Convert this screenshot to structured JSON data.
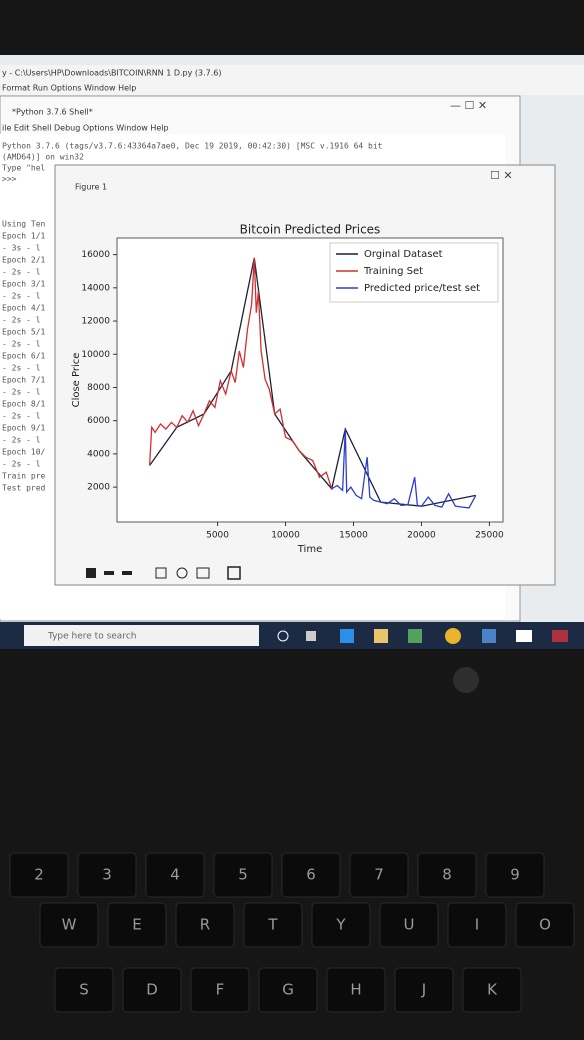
{
  "editor_title": "y - C:\\Users\\HP\\Downloads\\BITCOIN\\RNN 1 D.py (3.7.6)",
  "editor_menu": "Format   Run   Options   Window   Help",
  "shell_title": "*Python 3.7.6 Shell*",
  "shell_menu": "ile   Edit   Shell   Debug   Options   Window   Help",
  "shell_lines": [
    "Python 3.7.6 (tags/v3.7.6:43364a7ae0, Dec 19 2019, 00:42:30) [MSC v.1916 64 bit",
    "(AMD64)] on win32",
    "Type \"hel",
    ">>>"
  ],
  "shell_left_lines": [
    "Using Ten",
    "Epoch 1/1",
    " - 3s - l",
    "Epoch 2/1",
    " - 2s - l",
    "Epoch 3/1",
    " - 2s - l",
    "Epoch 4/1",
    " - 2s - l",
    "Epoch 5/1",
    " - 2s - l",
    "Epoch 6/1",
    " - 2s - l",
    "Epoch 7/1",
    " - 2s - l",
    "Epoch 8/1",
    " - 2s - l",
    "Epoch 9/1",
    " - 2s - l",
    "Epoch 10/",
    " - 2s - l",
    "Train pre",
    "Test pred"
  ],
  "figure_title": "Figure 1",
  "taskbar_search": "Type here to search",
  "keyboard_rows": [
    [
      "2",
      "3",
      "4",
      "5",
      "6",
      "7",
      "8",
      "9"
    ],
    [
      "W",
      "E",
      "R",
      "T",
      "Y",
      "U",
      "I",
      "O"
    ],
    [
      "S",
      "D",
      "F",
      "G",
      "H",
      "J",
      "K"
    ]
  ],
  "chart_data": {
    "type": "line",
    "title": "Bitcoin Predicted Prices",
    "x_label": "Time",
    "y_label": "Close Price",
    "xlim": [
      -2400,
      26000
    ],
    "ylim": [
      -100,
      17000
    ],
    "xticks": [
      5000,
      10000,
      15000,
      20000,
      25000
    ],
    "yticks": [
      2000,
      4000,
      6000,
      8000,
      10000,
      12000,
      14000,
      16000
    ],
    "legend": "upper right",
    "series": [
      {
        "name": "Orginal Dataset",
        "color": "#1f1f3a",
        "x": [
          0,
          2000,
          4000,
          6000,
          7700,
          9200,
          11000,
          13400,
          14400,
          17000,
          20000,
          24000
        ],
        "values": [
          3300,
          5600,
          6400,
          9000,
          15800,
          6400,
          4200,
          1900,
          5500,
          1100,
          850,
          1500
        ]
      },
      {
        "name": "Training Set",
        "color": "#d03030",
        "x": [
          0,
          150,
          400,
          800,
          1200,
          1600,
          2000,
          2400,
          2800,
          3200,
          3600,
          4000,
          4400,
          4800,
          5200,
          5600,
          6000,
          6300,
          6600,
          6900,
          7200,
          7500,
          7700,
          7850,
          8000,
          8200,
          8500,
          8800,
          9200,
          9600,
          10000,
          10500,
          11000,
          11500,
          12000,
          12500,
          13000,
          13400
        ],
        "values": [
          3300,
          5600,
          5300,
          5800,
          5500,
          5900,
          5600,
          6300,
          5900,
          6600,
          5700,
          6400,
          7200,
          6800,
          8400,
          7600,
          9000,
          8300,
          10200,
          9200,
          11500,
          13000,
          15800,
          12500,
          13800,
          10200,
          8500,
          7900,
          6400,
          6700,
          5000,
          4800,
          4200,
          3800,
          3600,
          2600,
          2900,
          1900
        ]
      },
      {
        "name": "Predicted price/test set",
        "color": "#2a3fd0",
        "x": [
          13400,
          13800,
          14200,
          14400,
          14500,
          14800,
          15200,
          15600,
          16000,
          16200,
          16500,
          17000,
          17500,
          18000,
          18500,
          19000,
          19500,
          19700,
          20000,
          20500,
          21000,
          21500,
          22000,
          22500,
          23000,
          23500,
          24000
        ],
        "values": [
          1900,
          2100,
          1800,
          5500,
          1700,
          2000,
          1500,
          1300,
          3800,
          1400,
          1200,
          1100,
          1000,
          1300,
          900,
          950,
          2600,
          900,
          850,
          1400,
          900,
          800,
          1600,
          850,
          800,
          750,
          1500
        ]
      }
    ]
  }
}
